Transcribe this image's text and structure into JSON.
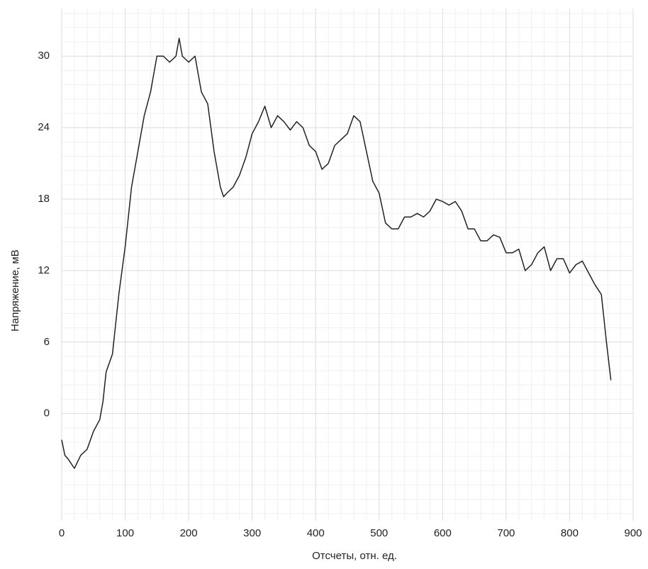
{
  "chart_data": {
    "type": "line",
    "xlabel": "Отсчеты, отн. ед.",
    "ylabel": "Напряжение, мВ",
    "x": [
      0,
      5,
      10,
      20,
      30,
      40,
      50,
      60,
      65,
      70,
      80,
      90,
      100,
      110,
      120,
      130,
      140,
      150,
      160,
      170,
      180,
      185,
      190,
      200,
      210,
      220,
      230,
      240,
      250,
      255,
      260,
      270,
      280,
      290,
      300,
      310,
      320,
      330,
      340,
      350,
      360,
      370,
      380,
      390,
      400,
      410,
      420,
      430,
      440,
      450,
      460,
      470,
      480,
      490,
      500,
      510,
      520,
      530,
      540,
      550,
      560,
      570,
      580,
      590,
      600,
      610,
      620,
      630,
      640,
      650,
      660,
      670,
      680,
      690,
      700,
      710,
      720,
      730,
      740,
      750,
      760,
      770,
      780,
      790,
      800,
      810,
      820,
      830,
      840,
      850,
      858,
      865
    ],
    "values": [
      -2.2,
      -3.5,
      -3.8,
      -4.6,
      -3.5,
      -3.0,
      -1.5,
      -0.5,
      1,
      3.5,
      5,
      10,
      14,
      19,
      22,
      25,
      27,
      30,
      30,
      29.5,
      30,
      31.5,
      30,
      29.5,
      30,
      27,
      26,
      22,
      19,
      18.2,
      18.5,
      19,
      20,
      21.5,
      23.5,
      24.5,
      25.8,
      24,
      25,
      24.5,
      23.8,
      24.5,
      24,
      22.5,
      22,
      20.5,
      21,
      22.5,
      23,
      23.5,
      25,
      24.5,
      22,
      19.5,
      18.5,
      16,
      15.5,
      15.5,
      16.5,
      16.5,
      16.8,
      16.5,
      17,
      18,
      17.8,
      17.5,
      17.8,
      17,
      15.5,
      15.5,
      14.5,
      14.5,
      15,
      14.8,
      13.5,
      13.5,
      13.8,
      12,
      12.5,
      13.5,
      14,
      12,
      13,
      13,
      11.8,
      12.5,
      12.8,
      11.8,
      10.8,
      10,
      6,
      2.8
    ],
    "color": "#222222",
    "xlim": [
      0,
      900
    ],
    "xticks": [
      0,
      100,
      200,
      300,
      400,
      500,
      600,
      700,
      800,
      900
    ],
    "ylim": [
      -9,
      34
    ],
    "yticks": [
      0,
      6,
      12,
      18,
      24,
      30
    ],
    "grid": true,
    "minor_grid": true
  }
}
